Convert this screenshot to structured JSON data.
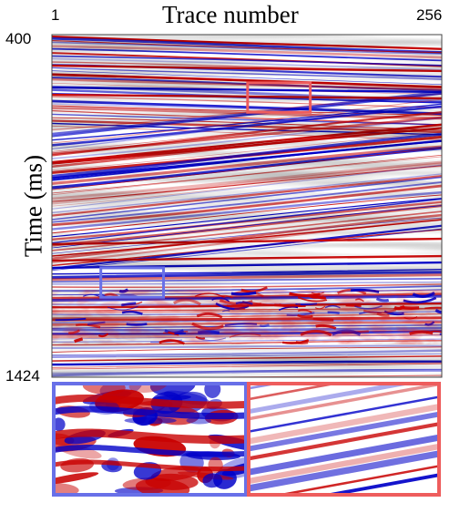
{
  "chart_data": {
    "type": "heatmap",
    "title": "Trace number",
    "ylabel": "Time (ms)",
    "x_tick_labels": [
      "1",
      "256"
    ],
    "y_tick_labels": [
      "400",
      "1424"
    ],
    "xlim": [
      1,
      256
    ],
    "ylim": [
      400,
      1424
    ],
    "colormap": [
      "#0000c8",
      "#ffffff",
      "#c80000"
    ],
    "highlight_boxes": [
      {
        "name": "coherent-zone",
        "color": "#ee5d5d",
        "x_range": [
          129,
          170
        ],
        "y_range": [
          544,
          632
        ]
      },
      {
        "name": "chaotic-zone",
        "color": "#6870e8",
        "x_range": [
          33,
          74
        ],
        "y_range": [
          1097,
          1185
        ]
      }
    ],
    "insets": [
      "chaotic-zone",
      "coherent-zone"
    ]
  }
}
